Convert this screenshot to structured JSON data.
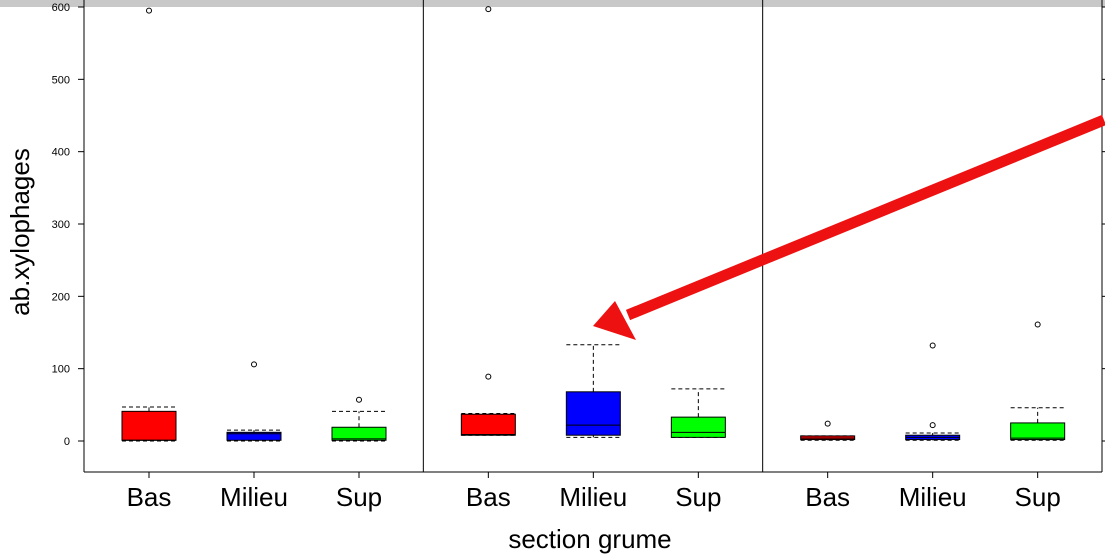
{
  "chart_data": {
    "type": "boxplot",
    "xlabel": "section grume",
    "ylabel": "ab.xylophages",
    "ylim": [
      -40,
      615
    ],
    "yticks": [
      0,
      100,
      200,
      300,
      400,
      500,
      600
    ],
    "categories": [
      "Bas",
      "Milieu",
      "Sup"
    ],
    "colors": {
      "Bas": "#ff0000",
      "Milieu": "#0000ff",
      "Sup": "#00ff00",
      "arrow": "#ee1111"
    },
    "panels": [
      {
        "boxes": [
          {
            "category": "Bas",
            "min": 0,
            "q1": 1,
            "median": 1,
            "q3": 41,
            "max": 47,
            "outliers": [
              595
            ]
          },
          {
            "category": "Milieu",
            "min": 0,
            "q1": 1,
            "median": 10,
            "q3": 12,
            "max": 15,
            "outliers": [
              106
            ]
          },
          {
            "category": "Sup",
            "min": 0,
            "q1": 1,
            "median": 3,
            "q3": 19,
            "max": 41,
            "outliers": [
              57
            ]
          }
        ]
      },
      {
        "boxes": [
          {
            "category": "Bas",
            "min": 8,
            "q1": 8,
            "median": 9,
            "q3": 37,
            "max": 38,
            "outliers": [
              89,
              597
            ]
          },
          {
            "category": "Milieu",
            "min": 5,
            "q1": 8,
            "median": 22,
            "q3": 68,
            "max": 133,
            "outliers": []
          },
          {
            "category": "Sup",
            "min": 5,
            "q1": 5,
            "median": 12,
            "q3": 33,
            "max": 72,
            "outliers": []
          }
        ]
      },
      {
        "boxes": [
          {
            "category": "Bas",
            "min": 1,
            "q1": 2,
            "median": 4,
            "q3": 7,
            "max": 7,
            "outliers": [
              24
            ]
          },
          {
            "category": "Milieu",
            "min": 1,
            "q1": 2,
            "median": 5,
            "q3": 8,
            "max": 11,
            "outliers": [
              22,
              132
            ]
          },
          {
            "category": "Sup",
            "min": 1,
            "q1": 2,
            "median": 4,
            "q3": 25,
            "max": 46,
            "outliers": [
              161
            ]
          }
        ]
      }
    ],
    "annotation": {
      "type": "arrow",
      "points_to": "panel 2 Milieu upper whisker"
    }
  }
}
